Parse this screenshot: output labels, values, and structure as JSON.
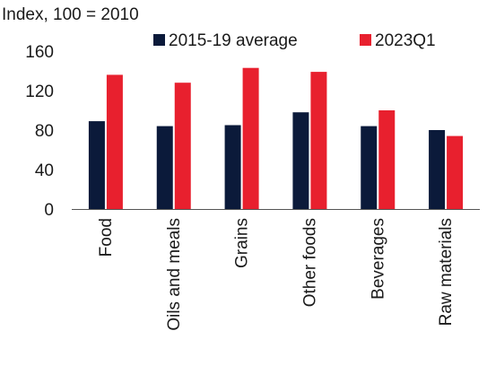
{
  "chart_data": {
    "type": "bar",
    "ylabel": "Index, 100 = 2010",
    "ylim": [
      0,
      160
    ],
    "yticks": [
      0,
      40,
      80,
      120,
      160
    ],
    "categories": [
      "Food",
      "Oils and meals",
      "Grains",
      "Other foods",
      "Beverages",
      "Raw materials"
    ],
    "series": [
      {
        "name": "2015-19 average",
        "color": "#0b1a3a",
        "values": [
          89,
          84,
          85,
          98,
          84,
          80
        ]
      },
      {
        "name": "2023Q1",
        "color": "#e8202e",
        "values": [
          136,
          128,
          143,
          139,
          100,
          74
        ]
      }
    ],
    "legend_position": "top",
    "grid": false
  }
}
